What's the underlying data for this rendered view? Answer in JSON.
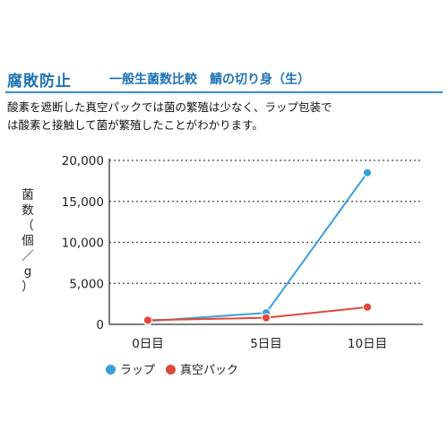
{
  "header": {
    "title": "腐敗防止",
    "subtitle": "一般生菌数比較　鯖の切り身（生）"
  },
  "description": {
    "line1": "酸素を遮断した真空パックでは菌の繁殖は少なく、ラップ包装で",
    "line2": "は酸素と接触して菌が繁殖したことがわかります。"
  },
  "chart_data": {
    "type": "line",
    "categories": [
      "0日目",
      "5日目",
      "10日目"
    ],
    "ylabel_chars": [
      "菌",
      "数",
      "（",
      "個",
      "／",
      "g",
      "）"
    ],
    "ylim": [
      0,
      20000
    ],
    "yticks": [
      0,
      5000,
      10000,
      15000,
      20000
    ],
    "ytick_labels": [
      "0",
      "5,000",
      "10,000",
      "15,000",
      "20,000"
    ],
    "grid": "horizontal dotted",
    "legend_position": "bottom-left",
    "series": [
      {
        "name": "ラップ",
        "values": [
          400,
          1400,
          18500
        ],
        "color": "#3a9fd8"
      },
      {
        "name": "真空パック",
        "values": [
          500,
          800,
          2100
        ],
        "color": "#e0483a"
      }
    ]
  }
}
